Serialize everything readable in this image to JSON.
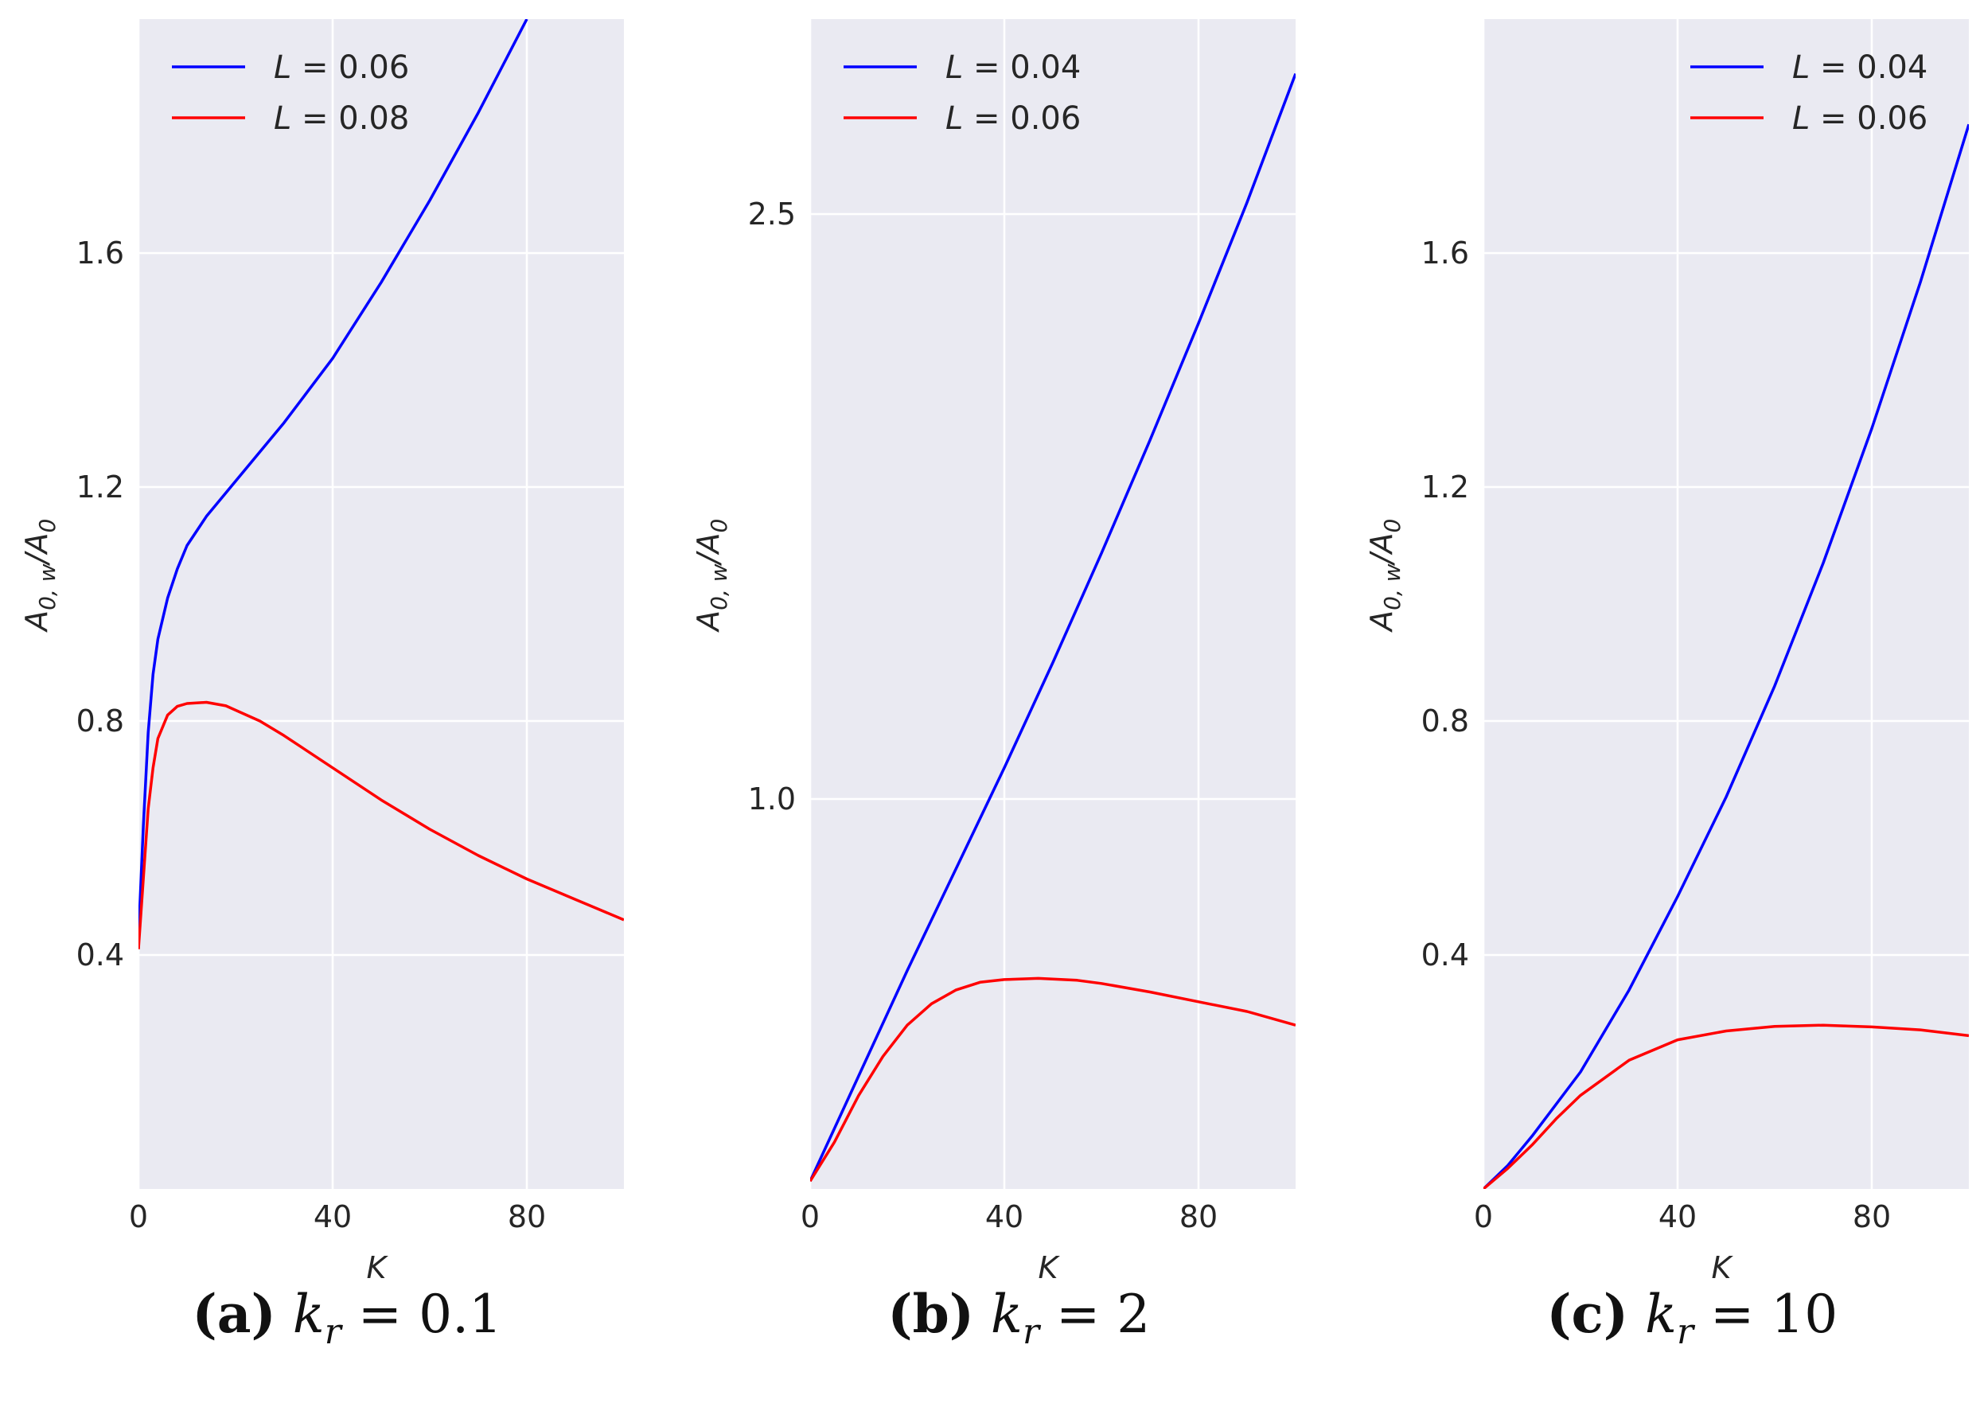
{
  "chart_data": [
    {
      "type": "line",
      "panel_tag": "(a)",
      "caption": "k_r = 0.1",
      "caption_var": "k",
      "caption_sub": "r",
      "caption_value": "= 0.1",
      "xlabel": "K",
      "ylabel": "A0,w/A0",
      "ylabel_base": "A",
      "ylabel_sub": "0, w",
      "ylabel_div": "/A",
      "ylabel_div_sub": "0",
      "xlim": [
        0,
        100
      ],
      "ylim": [
        0.0,
        2.0
      ],
      "xticks": [
        "0",
        "40",
        "80"
      ],
      "xtick_values": [
        0,
        40,
        80
      ],
      "yticks": [
        "0.4",
        "0.8",
        "1.2",
        "1.6"
      ],
      "ytick_values": [
        0.4,
        0.8,
        1.2,
        1.6
      ],
      "legend_position": "top-left",
      "series": [
        {
          "name": "L = 0.06",
          "label_var": "L",
          "label_value": "= 0.06",
          "color": "#0000ff",
          "x": [
            0,
            1,
            2,
            3,
            4,
            6,
            8,
            10,
            14,
            20,
            30,
            40,
            50,
            60,
            70,
            80
          ],
          "y": [
            0.43,
            0.62,
            0.78,
            0.88,
            0.94,
            1.01,
            1.06,
            1.1,
            1.15,
            1.21,
            1.31,
            1.42,
            1.55,
            1.69,
            1.84,
            2.0
          ]
        },
        {
          "name": "L = 0.08",
          "label_var": "L",
          "label_value": "= 0.08",
          "color": "#ff0000",
          "x": [
            0,
            1,
            2,
            3,
            4,
            6,
            8,
            10,
            14,
            18,
            25,
            30,
            40,
            50,
            60,
            70,
            80,
            90,
            100
          ],
          "y": [
            0.41,
            0.53,
            0.65,
            0.72,
            0.77,
            0.81,
            0.825,
            0.83,
            0.832,
            0.826,
            0.8,
            0.775,
            0.72,
            0.665,
            0.615,
            0.57,
            0.53,
            0.495,
            0.46
          ]
        }
      ]
    },
    {
      "type": "line",
      "panel_tag": "(b)",
      "caption": "k_r = 2",
      "caption_var": "k",
      "caption_sub": "r",
      "caption_value": "= 2",
      "xlabel": "K",
      "ylabel": "A0,w/A0",
      "ylabel_base": "A",
      "ylabel_sub": "0, w",
      "ylabel_div": "/A",
      "ylabel_div_sub": "0",
      "xlim": [
        0,
        100
      ],
      "ylim": [
        0.0,
        3.0
      ],
      "xticks": [
        "0",
        "40",
        "80"
      ],
      "xtick_values": [
        0,
        40,
        80
      ],
      "yticks": [
        "1.0",
        "2.5"
      ],
      "ytick_values": [
        1.0,
        2.5
      ],
      "legend_position": "top-left",
      "series": [
        {
          "name": "L = 0.04",
          "label_var": "L",
          "label_value": "= 0.04",
          "color": "#0000ff",
          "x": [
            0,
            10,
            20,
            30,
            40,
            50,
            60,
            70,
            80,
            90,
            100
          ],
          "y": [
            0.02,
            0.29,
            0.56,
            0.82,
            1.08,
            1.35,
            1.63,
            1.92,
            2.22,
            2.53,
            2.86
          ]
        },
        {
          "name": "L = 0.06",
          "label_var": "L",
          "label_value": "= 0.06",
          "color": "#ff0000",
          "x": [
            0,
            5,
            10,
            15,
            20,
            25,
            30,
            35,
            40,
            47,
            55,
            60,
            70,
            80,
            90,
            100
          ],
          "y": [
            0.02,
            0.12,
            0.24,
            0.34,
            0.42,
            0.475,
            0.51,
            0.53,
            0.537,
            0.54,
            0.535,
            0.527,
            0.505,
            0.48,
            0.455,
            0.42
          ]
        }
      ]
    },
    {
      "type": "line",
      "panel_tag": "(c)",
      "caption": "k_r = 10",
      "caption_var": "k",
      "caption_sub": "r",
      "caption_value": "= 10",
      "xlabel": "K",
      "ylabel": "A0,w/A0",
      "ylabel_base": "A",
      "ylabel_sub": "0, w",
      "ylabel_div": "/A",
      "ylabel_div_sub": "0",
      "xlim": [
        0,
        100
      ],
      "ylim": [
        0.0,
        2.0
      ],
      "xticks": [
        "0",
        "40",
        "80"
      ],
      "xtick_values": [
        0,
        40,
        80
      ],
      "yticks": [
        "0.4",
        "0.8",
        "1.2",
        "1.6"
      ],
      "ytick_values": [
        0.4,
        0.8,
        1.2,
        1.6
      ],
      "legend_position": "top-right",
      "series": [
        {
          "name": "L = 0.04",
          "label_var": "L",
          "label_value": "= 0.04",
          "color": "#0000ff",
          "x": [
            0,
            5,
            10,
            20,
            30,
            40,
            50,
            60,
            70,
            80,
            90,
            100
          ],
          "y": [
            0.0,
            0.04,
            0.09,
            0.2,
            0.34,
            0.5,
            0.67,
            0.86,
            1.07,
            1.3,
            1.55,
            1.82
          ]
        },
        {
          "name": "L = 0.06",
          "label_var": "L",
          "label_value": "= 0.06",
          "color": "#ff0000",
          "x": [
            0,
            5,
            10,
            15,
            20,
            30,
            40,
            50,
            60,
            70,
            80,
            90,
            100
          ],
          "y": [
            0.0,
            0.035,
            0.075,
            0.12,
            0.16,
            0.22,
            0.255,
            0.27,
            0.278,
            0.28,
            0.277,
            0.272,
            0.262
          ]
        }
      ]
    }
  ]
}
